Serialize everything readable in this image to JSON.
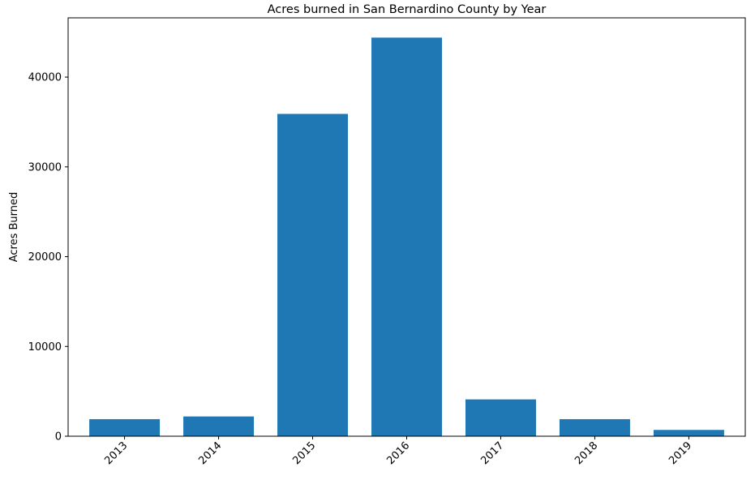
{
  "chart_data": {
    "type": "bar",
    "title": "Acres burned in San Bernardino County by Year",
    "xlabel": "",
    "ylabel": "Acres Burned",
    "categories": [
      "2013",
      "2014",
      "2015",
      "2016",
      "2017",
      "2018",
      "2019"
    ],
    "values": [
      1900,
      2200,
      35900,
      44400,
      4100,
      1900,
      700
    ],
    "ylim": [
      0,
      46600
    ],
    "yticks": [
      0,
      10000,
      20000,
      30000,
      40000
    ],
    "ytick_labels": [
      "0",
      "10000",
      "20000",
      "30000",
      "40000"
    ],
    "bar_color": "#1f77b4",
    "grid": false,
    "xtick_rotation": "45 degrees"
  }
}
